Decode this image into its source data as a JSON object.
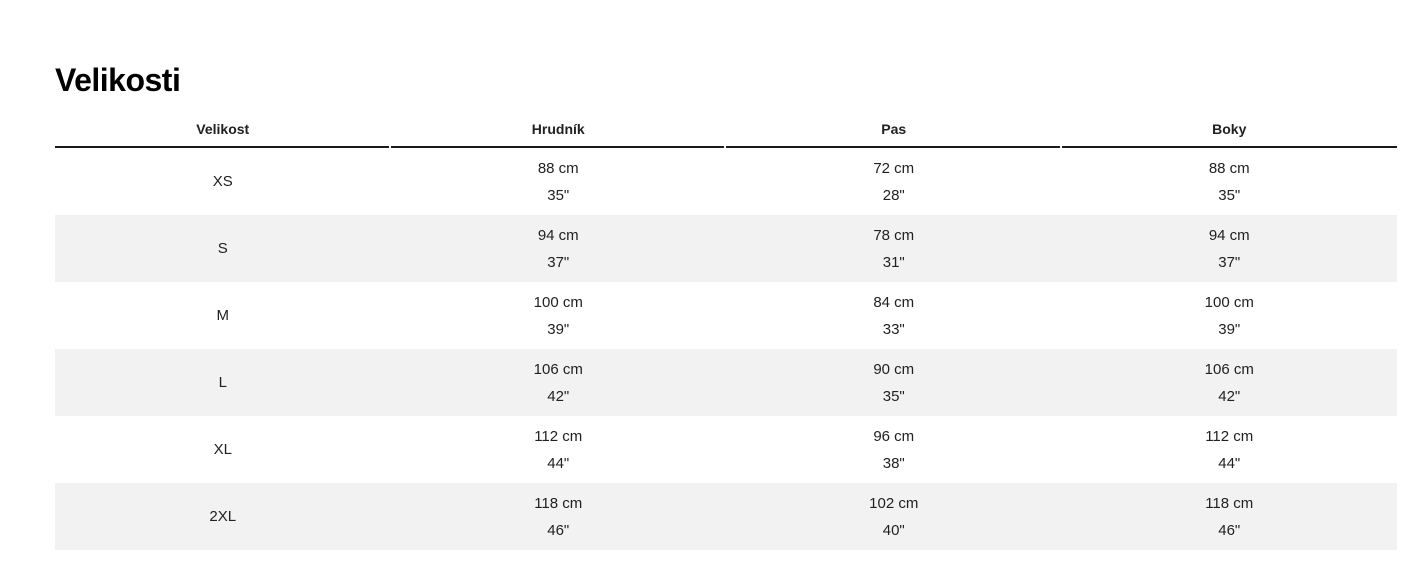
{
  "page": {
    "title": "Velikosti"
  },
  "table": {
    "columns": [
      "Velikost",
      "Hrudník",
      "Pas",
      "Boky"
    ],
    "rows": [
      {
        "size": "XS",
        "chest_cm": "88 cm",
        "chest_in": "35\"",
        "waist_cm": "72 cm",
        "waist_in": "28\"",
        "hips_cm": "88 cm",
        "hips_in": "35\""
      },
      {
        "size": "S",
        "chest_cm": "94 cm",
        "chest_in": "37\"",
        "waist_cm": "78 cm",
        "waist_in": "31\"",
        "hips_cm": "94 cm",
        "hips_in": "37\""
      },
      {
        "size": "M",
        "chest_cm": "100 cm",
        "chest_in": "39\"",
        "waist_cm": "84 cm",
        "waist_in": "33\"",
        "hips_cm": "100 cm",
        "hips_in": "39\""
      },
      {
        "size": "L",
        "chest_cm": "106 cm",
        "chest_in": "42\"",
        "waist_cm": "90 cm",
        "waist_in": "35\"",
        "hips_cm": "106 cm",
        "hips_in": "42\""
      },
      {
        "size": "XL",
        "chest_cm": "112 cm",
        "chest_in": "44\"",
        "waist_cm": "96 cm",
        "waist_in": "38\"",
        "hips_cm": "112 cm",
        "hips_in": "44\""
      },
      {
        "size": "2XL",
        "chest_cm": "118 cm",
        "chest_in": "46\"",
        "waist_cm": "102 cm",
        "waist_in": "40\"",
        "hips_cm": "118 cm",
        "hips_in": "46\""
      }
    ],
    "colors": {
      "row_alt_background": "#f2f2f2",
      "header_underline": "#1a1a1a",
      "text": "#212121"
    }
  }
}
